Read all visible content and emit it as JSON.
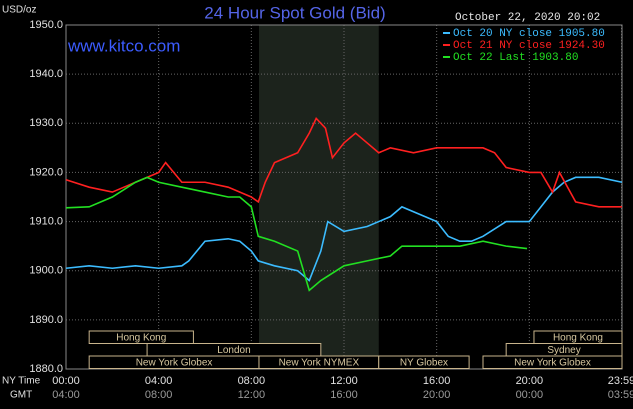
{
  "chart_data": {
    "type": "line",
    "title": "24 Hour Spot Gold (Bid)",
    "website": "www.kitco.com",
    "timestamp": "October 22, 2020 20:02",
    "y_unit": "USD/oz",
    "x_row_labels": [
      "NY Time",
      "GMT"
    ],
    "xlim": [
      0,
      24
    ],
    "xticks": [
      {
        "value": 0,
        "label": "00:00"
      },
      {
        "value": 4,
        "label": "04:00"
      },
      {
        "value": 8,
        "label": "08:00"
      },
      {
        "value": 12,
        "label": "12:00"
      },
      {
        "value": 16,
        "label": "16:00"
      },
      {
        "value": 20,
        "label": "20:00"
      },
      {
        "value": 23.98,
        "label": "23:59"
      }
    ],
    "xticks_gmt": [
      {
        "value": 0,
        "label": "04:00"
      },
      {
        "value": 4,
        "label": "08:00"
      },
      {
        "value": 8,
        "label": "12:00"
      },
      {
        "value": 12,
        "label": "16:00"
      },
      {
        "value": 16,
        "label": "20:00"
      },
      {
        "value": 20,
        "label": "00:00"
      },
      {
        "value": 23.98,
        "label": "03:59"
      }
    ],
    "ylim": [
      1880,
      1950
    ],
    "yticks": [
      {
        "value": 1880,
        "label": "1880.0"
      },
      {
        "value": 1890,
        "label": "1890.0"
      },
      {
        "value": 1900,
        "label": "1900.0"
      },
      {
        "value": 1910,
        "label": "1910.0"
      },
      {
        "value": 1920,
        "label": "1920.0"
      },
      {
        "value": 1930,
        "label": "1930.0"
      },
      {
        "value": 1940,
        "label": "1940.0"
      },
      {
        "value": 1950,
        "label": "1950.0"
      }
    ],
    "grid": true,
    "shaded_range": [
      8.33,
      13.5
    ],
    "sessions": [
      {
        "label": "Hong Kong",
        "start": 1,
        "end": 5.5,
        "row": 0
      },
      {
        "label": "Hong Kong",
        "start": 20.2,
        "end": 24,
        "row": 0
      },
      {
        "label": "London",
        "start": 3.5,
        "end": 11,
        "row": 1
      },
      {
        "label": "Sydney",
        "start": 19,
        "end": 24,
        "row": 1
      },
      {
        "label": "New York Globex",
        "start": 1,
        "end": 8.33,
        "row": 2
      },
      {
        "label": "New York NYMEX",
        "start": 8.33,
        "end": 13.5,
        "row": 2
      },
      {
        "label": "NY Globex",
        "start": 13.5,
        "end": 17.4,
        "row": 2
      },
      {
        "label": "New York Globex",
        "start": 18,
        "end": 24,
        "row": 2
      }
    ],
    "series": [
      {
        "name": "Oct 20 NY close 1905.80",
        "color": "#3cbcff",
        "x": [
          0,
          1,
          2,
          3,
          4,
          5,
          5.3,
          6,
          7,
          7.5,
          8,
          8.3,
          9,
          10,
          10.5,
          11,
          11.3,
          12,
          13,
          14,
          14.5,
          15.5,
          16,
          16.5,
          17,
          17.5,
          18,
          19,
          20,
          20.5,
          21,
          21.5,
          22,
          23,
          24
        ],
        "values": [
          1900.5,
          1901,
          1900.5,
          1901,
          1900.5,
          1901,
          1902,
          1906,
          1906.5,
          1906,
          1904,
          1902,
          1901,
          1900,
          1898,
          1904,
          1910,
          1908,
          1909,
          1911,
          1913,
          1911,
          1910,
          1907,
          1906,
          1906,
          1907,
          1910,
          1910,
          1913,
          1916,
          1918,
          1919,
          1919,
          1918
        ]
      },
      {
        "name": "Oct 21 NY close 1924.30",
        "color": "#ff2020",
        "x": [
          0,
          1,
          2,
          3,
          4,
          4.3,
          5,
          6,
          7,
          8,
          8.3,
          8.6,
          9,
          10,
          10.5,
          10.8,
          11.2,
          11.5,
          12,
          12.5,
          13,
          13.5,
          14,
          15,
          16,
          17,
          18,
          18.5,
          19,
          20,
          20.5,
          21,
          21.3,
          22,
          23,
          24
        ],
        "values": [
          1918.5,
          1917,
          1916,
          1918,
          1920,
          1922,
          1918,
          1918,
          1917,
          1915,
          1914,
          1918,
          1922,
          1924,
          1928,
          1931,
          1929,
          1923,
          1926,
          1928,
          1926,
          1924,
          1925,
          1924,
          1925,
          1925,
          1925,
          1924,
          1921,
          1920,
          1920,
          1916,
          1920,
          1914,
          1913,
          1913
        ]
      },
      {
        "name": "Oct 22 Last 1903.80",
        "color": "#22e022",
        "x": [
          0,
          1,
          2,
          3,
          3.5,
          4,
          5,
          6,
          7,
          7.5,
          8,
          8.3,
          9,
          10,
          10.5,
          11,
          12,
          13,
          14,
          14.5,
          15,
          16,
          17,
          18,
          19,
          19.9
        ],
        "values": [
          1912.8,
          1913,
          1915,
          1918,
          1919,
          1918,
          1917,
          1916,
          1915,
          1915,
          1913,
          1907,
          1906,
          1904,
          1896,
          1898,
          1901,
          1902,
          1903,
          1905,
          1905,
          1905,
          1905,
          1906,
          1905,
          1904.5
        ]
      }
    ]
  }
}
